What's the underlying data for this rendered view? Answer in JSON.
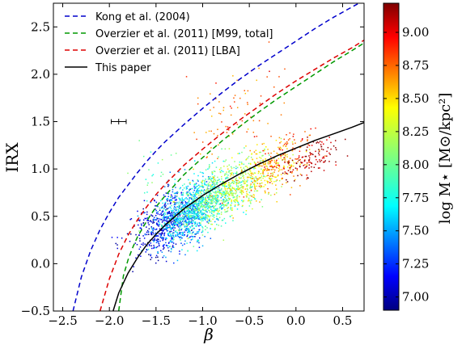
{
  "chart_data": {
    "type": "scatter",
    "xlabel": "β",
    "ylabel": "IRX",
    "xlim": [
      -2.6,
      0.73
    ],
    "ylim": [
      -0.5,
      2.75
    ],
    "x_ticks": [
      "−2.5",
      "−2.0",
      "−1.5",
      "−1.0",
      "−0.5",
      "0.0",
      "0.5"
    ],
    "y_ticks": [
      "−0.5",
      "0.0",
      "0.5",
      "1.0",
      "1.5",
      "2.0",
      "2.5"
    ],
    "grid": false,
    "legend_position": "top-left",
    "series": [
      {
        "name": "Kong et al. (2004)",
        "kind": "curve",
        "style": "dashed",
        "color": "#0000cc",
        "x": [
          -2.39,
          -2.3,
          -2.2,
          -2.1,
          -2.0,
          -1.9,
          -1.8,
          -1.7,
          -1.6,
          -1.5,
          -1.4,
          -1.2,
          -1.0,
          -0.8,
          -0.6,
          -0.4,
          -0.2,
          0.0,
          0.2,
          0.4,
          0.6,
          0.73
        ],
        "y": [
          -0.5,
          -0.14,
          0.14,
          0.36,
          0.54,
          0.7,
          0.83,
          0.96,
          1.08,
          1.19,
          1.29,
          1.47,
          1.64,
          1.8,
          1.95,
          2.09,
          2.22,
          2.35,
          2.48,
          2.6,
          2.71,
          2.78
        ]
      },
      {
        "name": "Overzier et al. (2011) [M99, total]",
        "kind": "curve",
        "style": "dashed",
        "color": "#009900",
        "x": [
          -1.9,
          -1.85,
          -1.8,
          -1.75,
          -1.7,
          -1.6,
          -1.5,
          -1.4,
          -1.2,
          -1.0,
          -0.8,
          -0.6,
          -0.4,
          -0.2,
          0.0,
          0.2,
          0.4,
          0.6,
          0.73
        ],
        "y": [
          -0.5,
          -0.13,
          0.04,
          0.17,
          0.28,
          0.45,
          0.6,
          0.72,
          0.94,
          1.12,
          1.29,
          1.45,
          1.6,
          1.74,
          1.87,
          2.0,
          2.13,
          2.25,
          2.33
        ]
      },
      {
        "name": "Overzier et al. (2011) [LBA]",
        "kind": "curve",
        "style": "dashed",
        "color": "#dd0000",
        "x": [
          -2.1,
          -2.0,
          -1.9,
          -1.8,
          -1.7,
          -1.6,
          -1.5,
          -1.4,
          -1.2,
          -1.0,
          -0.8,
          -0.6,
          -0.4,
          -0.2,
          0.0,
          0.2,
          0.4,
          0.6,
          0.73
        ],
        "y": [
          -0.5,
          -0.16,
          0.1,
          0.3,
          0.46,
          0.6,
          0.73,
          0.84,
          1.04,
          1.21,
          1.37,
          1.52,
          1.66,
          1.8,
          1.93,
          2.05,
          2.17,
          2.28,
          2.36
        ]
      },
      {
        "name": "This paper",
        "kind": "curve",
        "style": "solid",
        "color": "#000000",
        "x": [
          -1.96,
          -1.9,
          -1.8,
          -1.7,
          -1.6,
          -1.5,
          -1.4,
          -1.2,
          -1.0,
          -0.8,
          -0.6,
          -0.4,
          -0.2,
          0.0,
          0.2,
          0.4,
          0.6,
          0.73
        ],
        "y": [
          -0.5,
          -0.31,
          -0.1,
          0.06,
          0.2,
          0.31,
          0.41,
          0.58,
          0.72,
          0.84,
          0.95,
          1.05,
          1.14,
          1.22,
          1.3,
          1.37,
          1.44,
          1.49
        ]
      }
    ],
    "scatter_groups": [
      {
        "cx": -1.45,
        "cy": 0.4,
        "sx": 0.15,
        "sy": 0.16,
        "n": 360,
        "color_value": 7.1
      },
      {
        "cx": -1.2,
        "cy": 0.52,
        "sx": 0.17,
        "sy": 0.16,
        "n": 500,
        "color_value": 7.45
      },
      {
        "cx": -1.05,
        "cy": 0.6,
        "sx": 0.2,
        "sy": 0.15,
        "n": 620,
        "color_value": 7.8
      },
      {
        "cx": -0.85,
        "cy": 0.72,
        "sx": 0.22,
        "sy": 0.14,
        "n": 420,
        "color_value": 8.05
      },
      {
        "cx": -0.6,
        "cy": 0.85,
        "sx": 0.24,
        "sy": 0.14,
        "n": 320,
        "color_value": 8.25
      },
      {
        "cx": -0.3,
        "cy": 0.98,
        "sx": 0.2,
        "sy": 0.14,
        "n": 180,
        "color_value": 8.5
      },
      {
        "cx": -0.15,
        "cy": 1.12,
        "sx": 0.15,
        "sy": 0.12,
        "n": 110,
        "color_value": 8.75
      },
      {
        "cx": 0.15,
        "cy": 1.1,
        "sx": 0.16,
        "sy": 0.09,
        "n": 120,
        "color_value": 9.1
      },
      {
        "cx": -0.7,
        "cy": 1.6,
        "sx": 0.25,
        "sy": 0.22,
        "n": 80,
        "color_value": 8.65
      },
      {
        "cx": -1.55,
        "cy": 0.95,
        "sx": 0.12,
        "sy": 0.15,
        "n": 22,
        "color_value": 7.9
      }
    ],
    "error_bar": {
      "x": -1.9,
      "y": 1.5,
      "xerr": 0.08,
      "yerr": 0.03
    },
    "colorbar": {
      "label": "log M⋆ [M⊙/kpc²]",
      "min": 6.9,
      "max": 9.22,
      "ticks": [
        "7.00",
        "7.25",
        "7.50",
        "7.75",
        "8.00",
        "8.25",
        "8.50",
        "8.75",
        "9.00"
      ],
      "colormap": "jet"
    }
  }
}
